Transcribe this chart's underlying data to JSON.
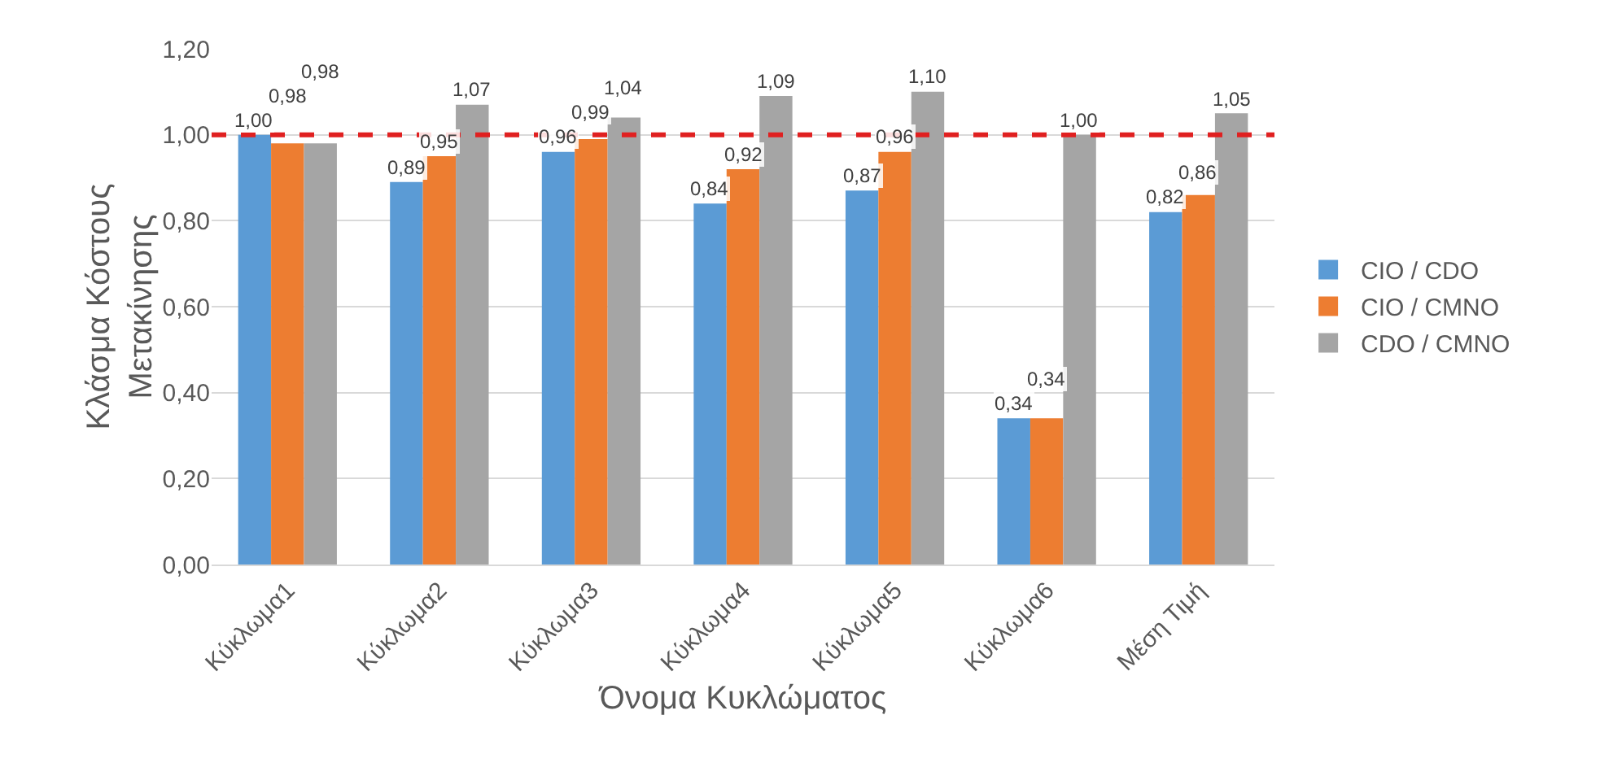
{
  "chart_data": {
    "type": "bar",
    "xlabel": "Όνομα Κυκλώματος",
    "ylabel": "Κλάσμα Κόστους Μετακίνησης",
    "categories": [
      "Κύκλωμα1",
      "Κύκλωμα2",
      "Κύκλωμα3",
      "Κύκλωμα4",
      "Κύκλωμα5",
      "Κύκλωμα6",
      "Μέση Τιμή"
    ],
    "series": [
      {
        "name": "CIO / CDO",
        "color": "#5b9bd5",
        "values": [
          1.0,
          0.89,
          0.96,
          0.84,
          0.87,
          0.34,
          0.82
        ],
        "value_labels": [
          "1,00",
          "0,89",
          "0,96",
          "0,84",
          "0,87",
          "0,34",
          "0,82"
        ]
      },
      {
        "name": "CIO / CMNO",
        "color": "#ed7d31",
        "values": [
          0.98,
          0.95,
          0.99,
          0.92,
          0.96,
          0.34,
          0.86
        ],
        "value_labels": [
          "0,98",
          "0,95",
          "0,99",
          "0,92",
          "0,96",
          "0,34",
          "0,86"
        ]
      },
      {
        "name": "CDO / CMNO",
        "color": "#a5a5a5",
        "values": [
          0.98,
          1.07,
          1.04,
          1.09,
          1.1,
          1.0,
          1.05
        ],
        "value_labels": [
          "0,98",
          "1,07",
          "1,04",
          "1,09",
          "1,10",
          "1,00",
          "1,05"
        ]
      }
    ],
    "ylim": [
      0,
      1.2
    ],
    "yticks": [
      {
        "value": 0,
        "label": "0,00"
      },
      {
        "value": 0.2,
        "label": "0,20"
      },
      {
        "value": 0.4,
        "label": "0,40"
      },
      {
        "value": 0.6,
        "label": "0,60"
      },
      {
        "value": 0.8,
        "label": "0,80"
      },
      {
        "value": 1.0,
        "label": "1,00"
      },
      {
        "value": 1.2,
        "label": "1,20"
      }
    ],
    "ref_lines": [
      {
        "axis": "y",
        "value": 1.0,
        "color": "#e02020",
        "line_style": "dashed"
      }
    ],
    "grid": "y",
    "legend": "right"
  }
}
